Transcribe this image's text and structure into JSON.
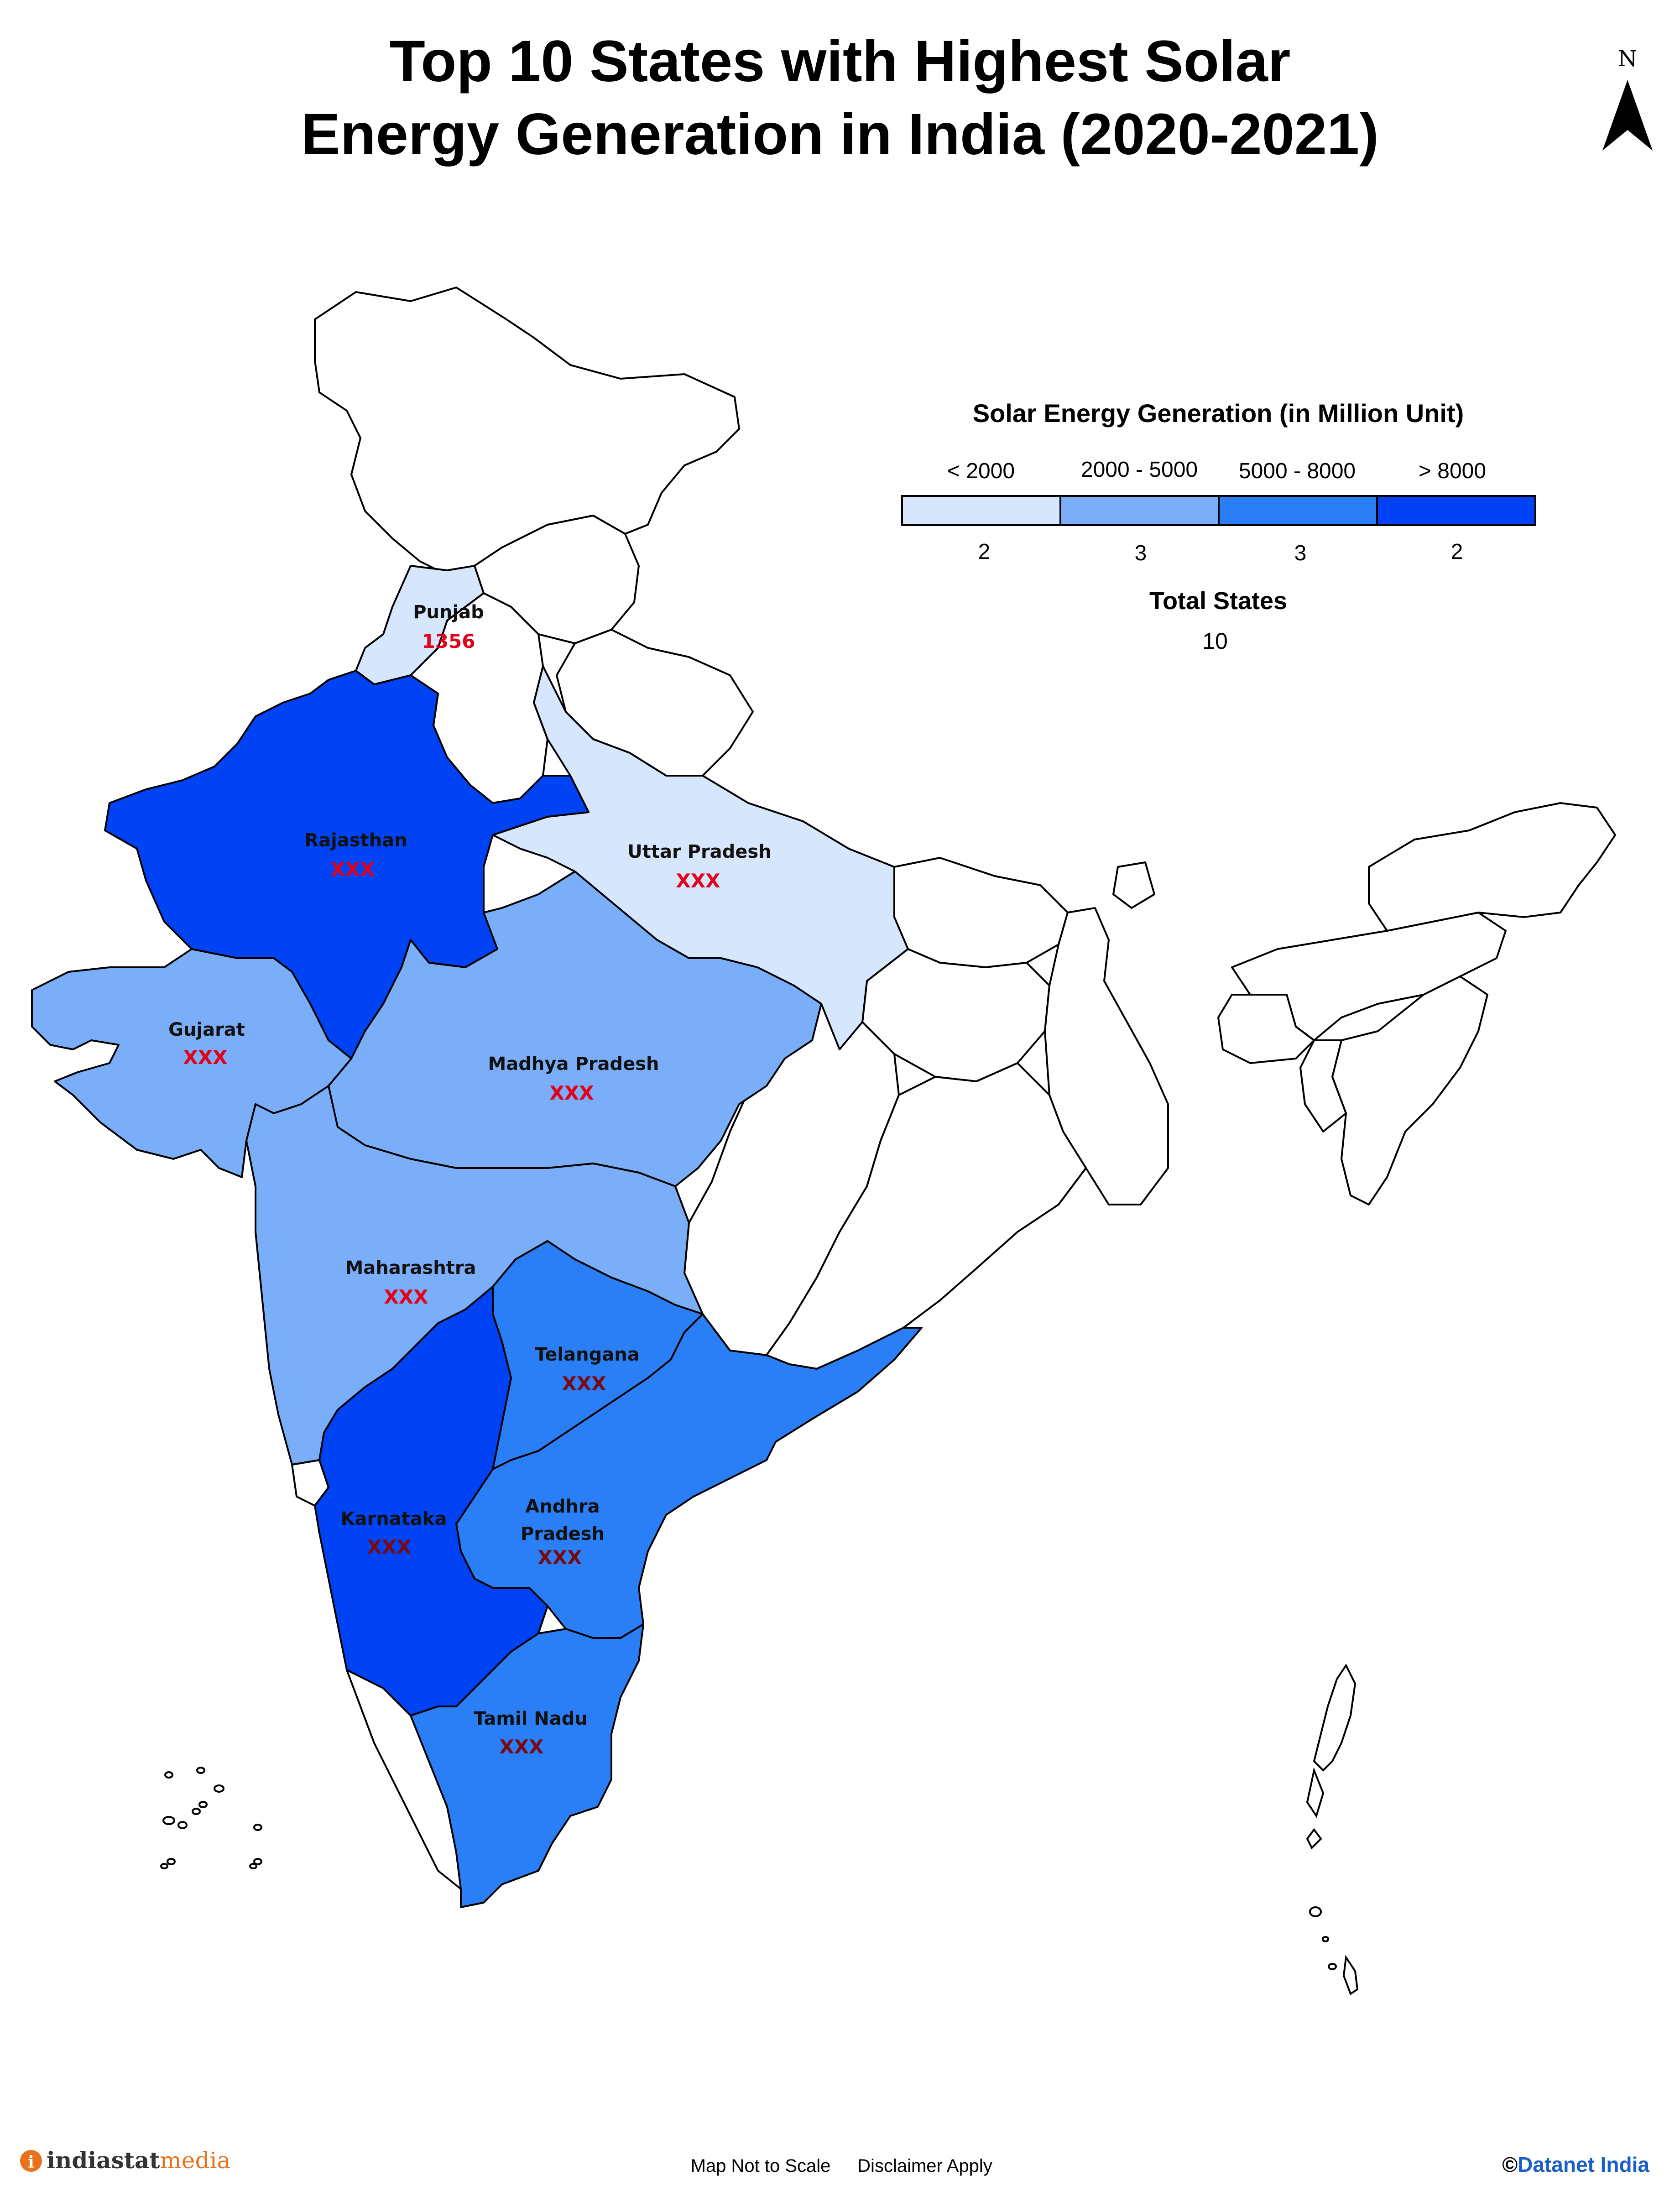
{
  "title": {
    "line1": "Top 10 States with Highest Solar",
    "line2": "Energy Generation in India (2020-2021)"
  },
  "north_arrow": {
    "label": "N"
  },
  "legend": {
    "title": "Solar Energy Generation (in Million Unit)",
    "classes": [
      {
        "label": "< 2000",
        "count": "2",
        "color": "#d6e6fd"
      },
      {
        "label": "2000 - 5000",
        "count": "3",
        "color": "#7aaef8"
      },
      {
        "label": "5000 - 8000",
        "count": "3",
        "color": "#2a7ff6"
      },
      {
        "label": "> 8000",
        "count": "2",
        "color": "#0043f5"
      }
    ],
    "total_label": "Total States",
    "total_value": "10"
  },
  "states": [
    {
      "name": "Punjab",
      "value": "1356",
      "value_color": "#e3001b"
    },
    {
      "name": "Rajasthan",
      "value": "XXX",
      "value_color": "#e3001b"
    },
    {
      "name": "Uttar Pradesh",
      "value": "XXX",
      "value_color": "#e3001b"
    },
    {
      "name": "Gujarat",
      "value": "XXX",
      "value_color": "#e3001b"
    },
    {
      "name": "Madhya Pradesh",
      "value": "XXX",
      "value_color": "#e3001b"
    },
    {
      "name": "Maharashtra",
      "value": "XXX",
      "value_color": "#e3001b"
    },
    {
      "name": "Telangana",
      "value": "XXX",
      "value_color": "#7a0a12"
    },
    {
      "name": "Karnataka",
      "value": "XXX",
      "value_color": "#7a0a12"
    },
    {
      "name": "Andhra",
      "name_line2": "Pradesh",
      "value": "XXX",
      "value_color": "#7a0a12"
    },
    {
      "name": "Tamil Nadu",
      "value": "XXX",
      "value_color": "#7a0a12"
    }
  ],
  "footer": {
    "brand_main": "indiastat",
    "brand_sub": "media",
    "note1": "Map Not to Scale",
    "note2": "Disclaimer Apply",
    "copyright_symbol": "©",
    "copyright": "Datanet India"
  },
  "colors": {
    "brand_orange": "#e8731c",
    "datanet_blue": "#1a5fc9",
    "total_label_color": "#7a1a1a"
  }
}
